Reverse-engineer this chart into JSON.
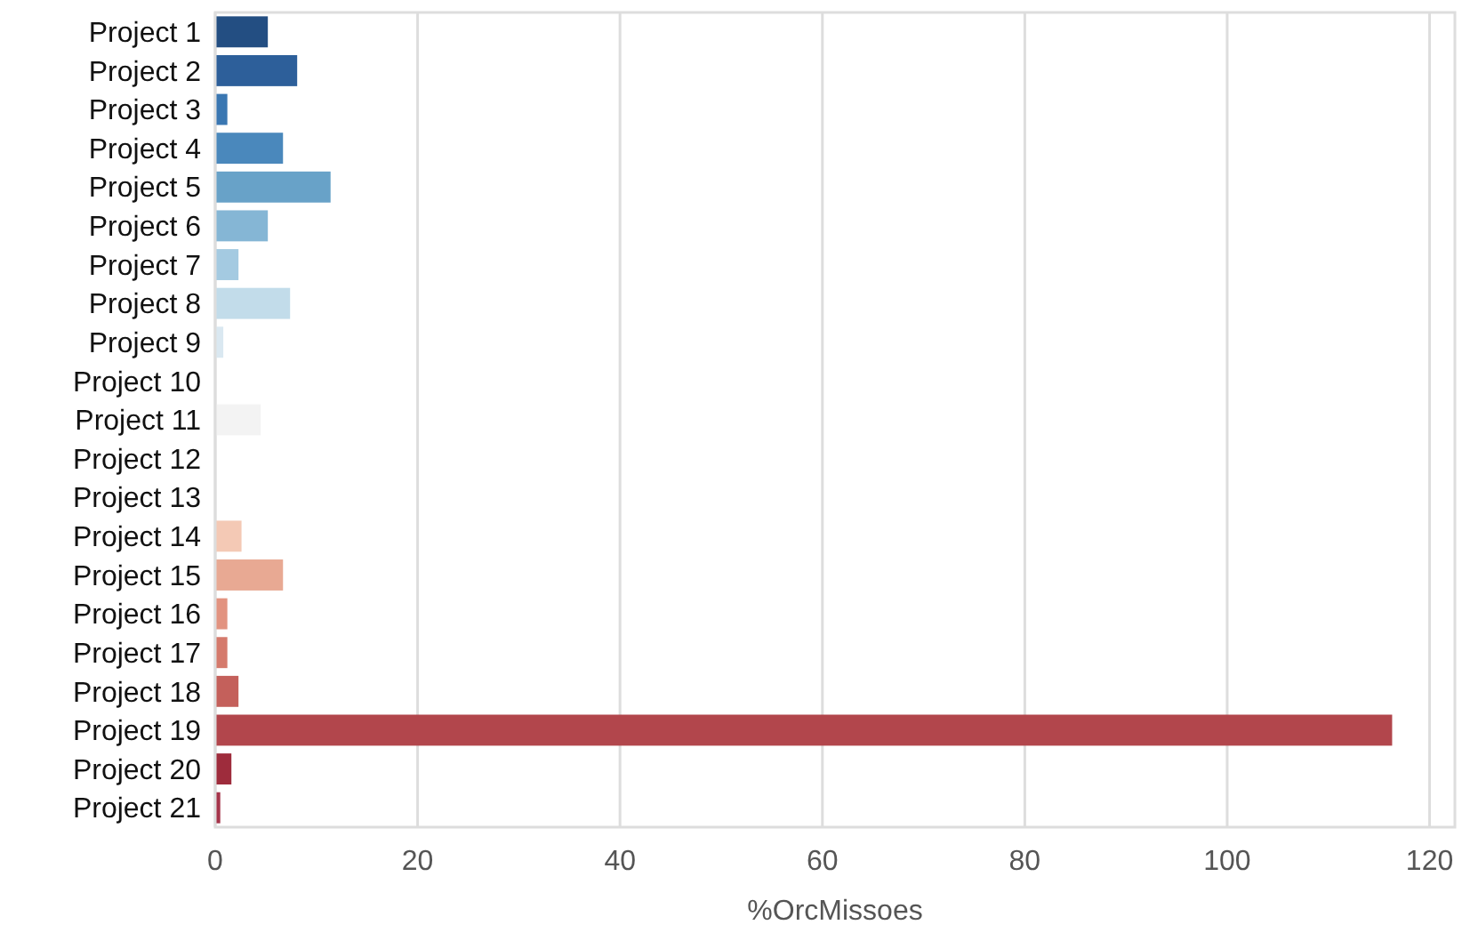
{
  "chart_data": {
    "type": "bar",
    "orientation": "horizontal",
    "xlabel": "%OrcMissoes",
    "categories": [
      "Project 1",
      "Project 2",
      "Project 3",
      "Project 4",
      "Project 5",
      "Project 6",
      "Project 7",
      "Project 8",
      "Project 9",
      "Project 10",
      "Project 11",
      "Project 12",
      "Project 13",
      "Project 14",
      "Project 15",
      "Project 16",
      "Project 17",
      "Project 18",
      "Project 19",
      "Project 20",
      "Project 21"
    ],
    "values": [
      5.2,
      8.1,
      1.2,
      6.7,
      11.4,
      5.2,
      2.3,
      7.4,
      0.8,
      0,
      4.5,
      0,
      0,
      2.6,
      6.7,
      1.2,
      1.2,
      2.3,
      116.3,
      1.6,
      0.5
    ],
    "colors": [
      "#234e82",
      "#2d5f9a",
      "#3a77b2",
      "#4a88bc",
      "#68a2c8",
      "#85b6d5",
      "#a4cae1",
      "#c2dcea",
      "#dae8f1",
      "#ecf1f5",
      "#f3f3f3",
      "#f8ece6",
      "#f8dccf",
      "#f4c9b5",
      "#e8a993",
      "#e29380",
      "#d57a6c",
      "#c4605b",
      "#b2464c",
      "#9e2c3c",
      "#a5344a"
    ],
    "xlim": [
      0,
      122.5
    ],
    "xticks": [
      0,
      20,
      40,
      60,
      80,
      100,
      120
    ],
    "grid": "x"
  }
}
